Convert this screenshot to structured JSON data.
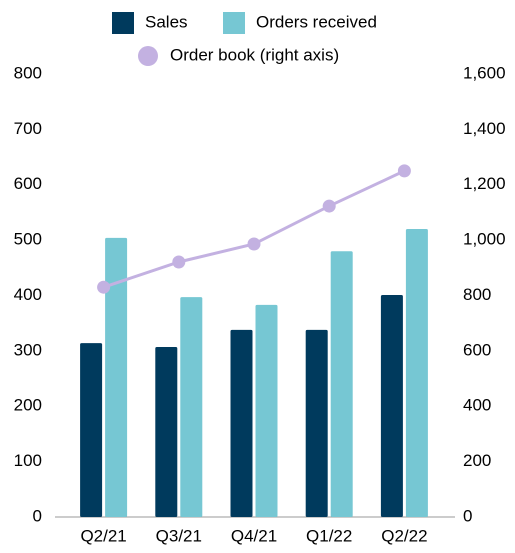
{
  "chart_data": {
    "type": "bar",
    "categories": [
      "Q2/21",
      "Q3/21",
      "Q4/21",
      "Q1/22",
      "Q2/22"
    ],
    "series": [
      {
        "name": "Sales",
        "color": "#003a5d",
        "values": [
          314,
          307,
          338,
          338,
          401
        ]
      },
      {
        "name": "Orders received",
        "color": "#76c7d3",
        "values": [
          504,
          397,
          383,
          480,
          520
        ]
      },
      {
        "name": "Order book (right axis)",
        "color": "#c3b1e1",
        "type": "line",
        "axis": "y2",
        "values": [
          830,
          921,
          986,
          1123,
          1250
        ]
      }
    ],
    "ylim": [
      0,
      800
    ],
    "yticks": [
      0,
      100,
      200,
      300,
      400,
      500,
      600,
      700,
      800
    ],
    "y2lim": [
      0,
      1600
    ],
    "y2ticks": [
      0,
      200,
      400,
      600,
      800,
      {
        "value": 1000,
        "label": "1,000"
      },
      {
        "value": 1200,
        "label": "1,200"
      },
      {
        "value": 1400,
        "label": "1,400"
      },
      {
        "value": 1600,
        "label": "1,600"
      }
    ],
    "grid": false,
    "legend": "top"
  }
}
